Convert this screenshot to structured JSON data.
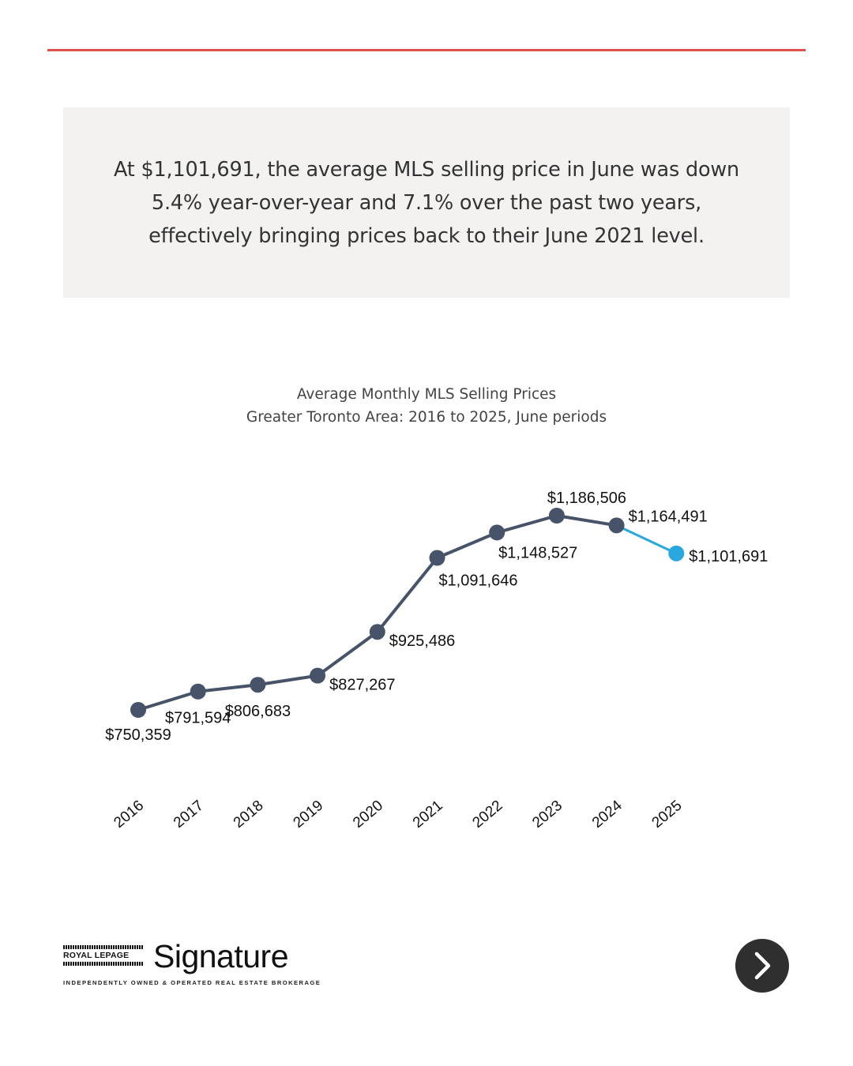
{
  "colors": {
    "rule": "#e0504d",
    "line_main": "#465369",
    "line_highlight": "#29a8e0",
    "callout_bg": "#f3f2f1",
    "button_bg": "#2f2f2f"
  },
  "callout": {
    "text": "At $1,101,691, the average MLS selling price in June was down 5.4% year-over-year and 7.1% over the past two years, effectively bringing prices back to their June 2021 level."
  },
  "chart_data": {
    "type": "line",
    "title": "Average Monthly MLS Selling Prices",
    "subtitle": "Greater Toronto Area: 2016 to 2025, June periods",
    "categories": [
      "2016",
      "2017",
      "2018",
      "2019",
      "2020",
      "2021",
      "2022",
      "2023",
      "2024",
      "2025"
    ],
    "values": [
      750359,
      791594,
      806683,
      827267,
      925486,
      1091646,
      1148527,
      1186506,
      1164491,
      1101691
    ],
    "data_labels": [
      "$750,359",
      "$791,594",
      "$806,683",
      "$827,267",
      "$925,486",
      "$1,091,646",
      "$1,148,527",
      "$1,186,506",
      "$1,164,491",
      "$1,101,691"
    ],
    "label_placement": [
      "below",
      "below",
      "below",
      "below-right",
      "below-right",
      "below",
      "below",
      "above",
      "above-right",
      "right"
    ],
    "highlight_last_segment": true,
    "xlabel": "",
    "ylabel": "",
    "grid": false,
    "y_axis_visible": false
  },
  "footer": {
    "brand_small": "ROYAL LEPAGE",
    "brand_name": "Signature",
    "tagline": "INDEPENDENTLY OWNED & OPERATED REAL ESTATE BROKERAGE",
    "next_icon": "chevron-right-icon"
  }
}
